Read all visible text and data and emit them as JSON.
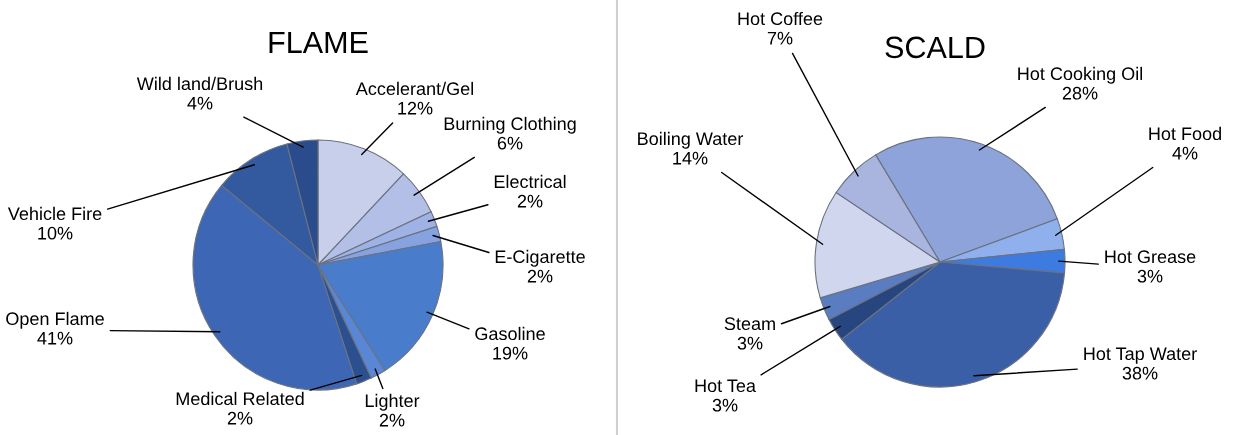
{
  "chart_data": [
    {
      "type": "pie",
      "title": "FLAME",
      "categories": [
        "Accelerant/Gel",
        "Burning Clothing",
        "Electrical",
        "E-Cigarette",
        "Gasoline",
        "Lighter",
        "Medical Related",
        "Open Flame",
        "Vehicle Fire",
        "Wild land/Brush"
      ],
      "values": [
        12,
        6,
        2,
        2,
        19,
        2,
        2,
        41,
        10,
        4
      ],
      "colors": [
        "#c8cfea",
        "#b3bfe6",
        "#9fb2e6",
        "#86a2e0",
        "#4a7ccc",
        "#5a86d6",
        "#2c4f8f",
        "#3d67b4",
        "#33599f",
        "#2b4c8c"
      ],
      "value_labels": [
        "12%",
        "6%",
        "2%",
        "2%",
        "19%",
        "2%",
        "2%",
        "41%",
        "10%",
        "4%"
      ]
    },
    {
      "type": "pie",
      "title": "SCALD",
      "categories": [
        "Hot Cooking Oil",
        "Hot Food",
        "Hot Grease",
        "Hot Tap Water",
        "Hot Tea",
        "Steam",
        "Boiling Water",
        "Hot Coffee"
      ],
      "values": [
        28,
        4,
        3,
        38,
        3,
        3,
        14,
        7
      ],
      "colors": [
        "#8ea3da",
        "#8fb0ec",
        "#3d7be0",
        "#3b5fa6",
        "#27467f",
        "#5a7cc0",
        "#cfd6ee",
        "#a9b5de"
      ],
      "value_labels": [
        "28%",
        "4%",
        "3%",
        "38%",
        "3%",
        "3%",
        "14%",
        "7%"
      ]
    }
  ]
}
